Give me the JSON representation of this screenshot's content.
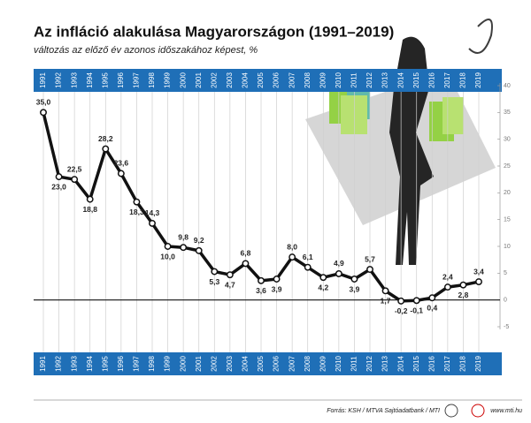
{
  "chart_data": {
    "type": "line",
    "title": "Az infláció alakulása Magyarországon (1991–2019)",
    "subtitle": "változás az előző év azonos időszakához képest, %",
    "categories": [
      "1991",
      "1992",
      "1993",
      "1994",
      "1995",
      "1996",
      "1997",
      "1998",
      "1999",
      "2000",
      "2001",
      "2002",
      "2003",
      "2004",
      "2005",
      "2006",
      "2007",
      "2008",
      "2009",
      "2010",
      "2011",
      "2012",
      "2013",
      "2014",
      "2015",
      "2016",
      "2017",
      "2018",
      "2019"
    ],
    "series": [
      {
        "name": "Infláció",
        "color": "#111111",
        "values": [
          35.0,
          23.0,
          22.5,
          18.8,
          28.2,
          23.6,
          18.3,
          14.3,
          10.0,
          9.8,
          9.2,
          5.3,
          4.7,
          6.8,
          3.6,
          3.9,
          8.0,
          6.1,
          4.2,
          4.9,
          3.9,
          5.7,
          1.7,
          -0.2,
          -0.1,
          0.4,
          2.4,
          2.8,
          3.4
        ],
        "value_labels": [
          "35,0",
          "23,0",
          "22,5",
          "18,8",
          "28,2",
          "23,6",
          "18,3",
          "14,3",
          "10,0",
          "9,8",
          "9,2",
          "5,3",
          "4,7",
          "6,8",
          "3,6",
          "3,9",
          "8,0",
          "6,1",
          "4,2",
          "4,9",
          "3,9",
          "5,7",
          "1,7",
          "-0,2",
          "-0,1",
          "0,4",
          "2,4",
          "2,8",
          "3,4"
        ]
      }
    ],
    "ylim": [
      -5,
      40
    ],
    "yticks": [
      -5,
      0,
      5,
      10,
      15,
      20,
      25,
      30,
      35,
      40
    ],
    "band_color": "#1f6fb7",
    "source": "Forrás: KSH / MTVA Sajtóadatbank / MTI",
    "website": "www.mti.hu"
  }
}
